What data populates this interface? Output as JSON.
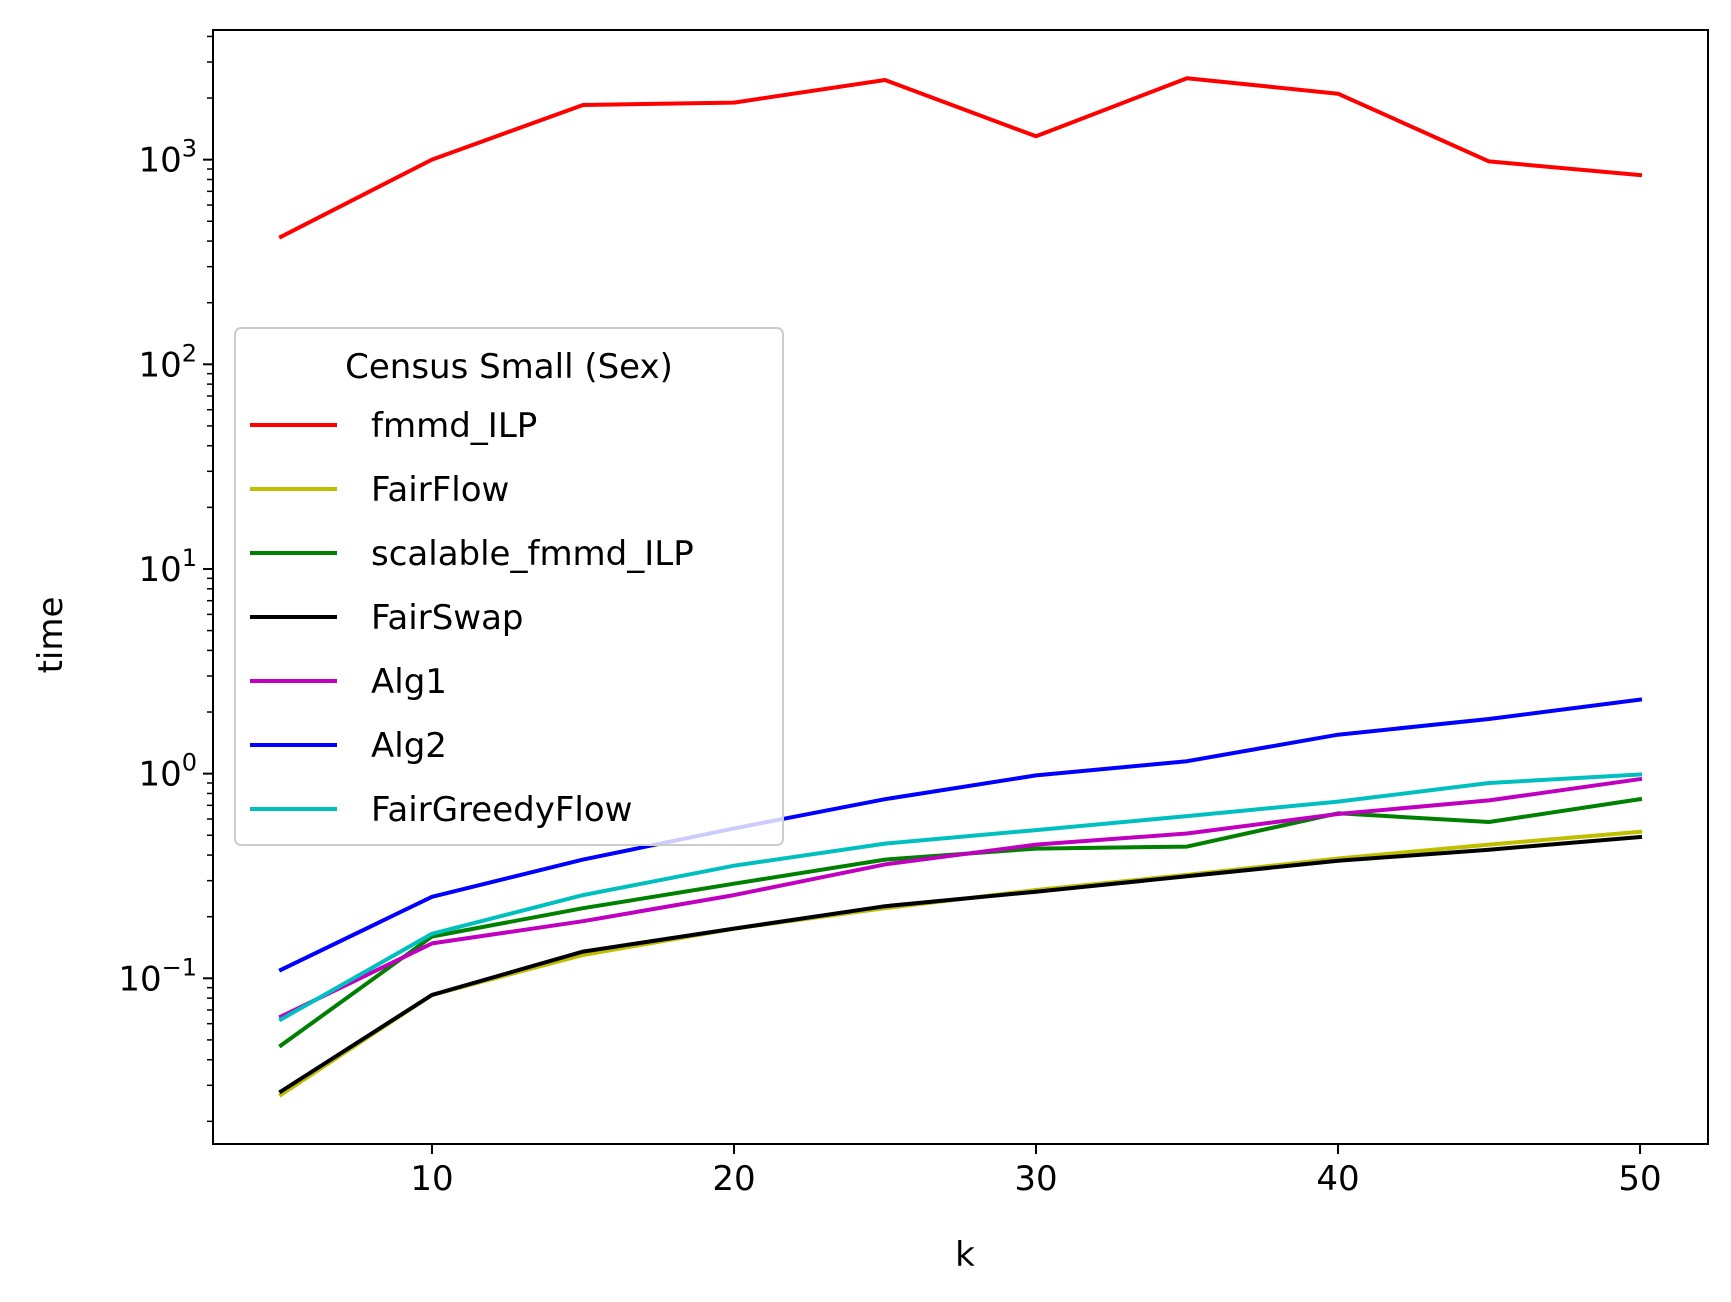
{
  "chart_data": {
    "type": "line",
    "title": "",
    "xlabel": "k",
    "ylabel": "time",
    "yscale": "log",
    "xlim": [
      2.75,
      52.25
    ],
    "ylim": [
      0.0155,
      4300
    ],
    "x_ticks": [
      10,
      20,
      30,
      40,
      50
    ],
    "y_ticks": [
      {
        "value": 0.1,
        "base": "10",
        "exp": "−1"
      },
      {
        "value": 1,
        "base": "10",
        "exp": "0"
      },
      {
        "value": 10,
        "base": "10",
        "exp": "1"
      },
      {
        "value": 100,
        "base": "10",
        "exp": "2"
      },
      {
        "value": 1000,
        "base": "10",
        "exp": "3"
      }
    ],
    "grid": false,
    "legend": {
      "title": "Census Small (Sex)",
      "placement": "center-left"
    },
    "x": [
      5,
      10,
      15,
      20,
      25,
      30,
      35,
      40,
      45,
      50
    ],
    "series": [
      {
        "name": "fmmd_ILP",
        "color": "#ff0000",
        "values": [
          420,
          1000,
          1850,
          1900,
          2450,
          1300,
          2500,
          2100,
          980,
          840
        ]
      },
      {
        "name": "FairFlow",
        "color": "#bfbf00",
        "values": [
          0.027,
          0.083,
          0.13,
          0.175,
          0.22,
          0.27,
          0.32,
          0.385,
          0.45,
          0.52
        ]
      },
      {
        "name": "scalable_fmmd_ILP",
        "color": "#008000",
        "values": [
          0.047,
          0.16,
          0.22,
          0.29,
          0.38,
          0.43,
          0.44,
          0.64,
          0.58,
          0.75
        ]
      },
      {
        "name": "FairSwap",
        "color": "#000000",
        "values": [
          0.028,
          0.083,
          0.135,
          0.175,
          0.225,
          0.265,
          0.315,
          0.375,
          0.425,
          0.49
        ]
      },
      {
        "name": "Alg1",
        "color": "#bf00bf",
        "values": [
          0.065,
          0.148,
          0.19,
          0.255,
          0.36,
          0.45,
          0.51,
          0.635,
          0.74,
          0.94
        ]
      },
      {
        "name": "Alg2",
        "color": "#0000ff",
        "values": [
          0.11,
          0.25,
          0.38,
          0.54,
          0.75,
          0.98,
          1.15,
          1.55,
          1.85,
          2.3
        ]
      },
      {
        "name": "FairGreedyFlow",
        "color": "#00bfbf",
        "values": [
          0.063,
          0.165,
          0.255,
          0.355,
          0.455,
          0.53,
          0.62,
          0.73,
          0.9,
          0.99
        ]
      }
    ]
  }
}
